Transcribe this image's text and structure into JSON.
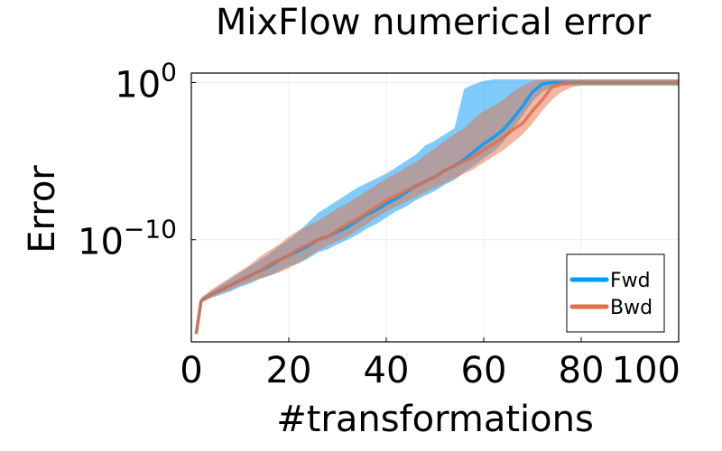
{
  "chart_data": {
    "type": "line",
    "title": "MixFlow numerical error",
    "xlabel": "#transformations",
    "ylabel": "Error",
    "xlim": [
      0,
      100
    ],
    "ylim_log10": [
      -16.5,
      0.6
    ],
    "y_scale": "log",
    "x_ticks": [
      "0",
      "20",
      "40",
      "60",
      "80",
      "100"
    ],
    "y_ticks": [
      {
        "log10": 0,
        "base": "10",
        "exp": "0"
      },
      {
        "log10": -10,
        "base": "10",
        "exp": "−10"
      }
    ],
    "grid": true,
    "legend_position": "bottom-right",
    "x": [
      1,
      2,
      4,
      6,
      8,
      10,
      12,
      14,
      16,
      18,
      20,
      22,
      24,
      26,
      28,
      30,
      32,
      34,
      36,
      38,
      40,
      42,
      44,
      46,
      48,
      50,
      52,
      54,
      56,
      58,
      60,
      62,
      64,
      66,
      68,
      70,
      72,
      74,
      76,
      78,
      80,
      82,
      84,
      86,
      88,
      90,
      92,
      94,
      96,
      98,
      100
    ],
    "series": [
      {
        "name": "Fwd",
        "color": "#009af9",
        "values_log10": [
          -16.0,
          -13.9,
          -13.5,
          -13.2,
          -12.9,
          -12.6,
          -12.3,
          -12.0,
          -11.7,
          -11.3,
          -11.0,
          -10.7,
          -10.4,
          -10.0,
          -9.8,
          -9.5,
          -9.2,
          -8.8,
          -8.4,
          -8.1,
          -7.7,
          -7.4,
          -7.0,
          -6.6,
          -6.3,
          -6.0,
          -5.6,
          -5.3,
          -4.9,
          -4.4,
          -3.9,
          -3.5,
          -3.0,
          -2.3,
          -1.5,
          -0.6,
          -0.1,
          0.0,
          0.0,
          0.0,
          0.0,
          0.0,
          0.0,
          0.0,
          0.0,
          0.0,
          0.0,
          0.0,
          0.0,
          0.0,
          0.0
        ],
        "band_lower_log10": [
          -16.0,
          -14.0,
          -13.7,
          -13.5,
          -13.3,
          -13.0,
          -12.8,
          -12.5,
          -12.3,
          -12.0,
          -11.7,
          -11.5,
          -11.2,
          -10.8,
          -10.6,
          -10.3,
          -10.0,
          -9.7,
          -9.3,
          -9.0,
          -8.6,
          -8.2,
          -7.9,
          -7.5,
          -7.2,
          -6.9,
          -6.5,
          -6.2,
          -5.7,
          -5.3,
          -4.8,
          -4.4,
          -3.8,
          -2.9,
          -2.1,
          -1.2,
          -0.6,
          -0.3,
          -0.2,
          -0.2,
          -0.2,
          -0.2,
          -0.2,
          -0.2,
          -0.2,
          -0.2,
          -0.2,
          -0.2,
          -0.2,
          -0.2,
          -0.2
        ],
        "band_upper_log10": [
          -16.0,
          -13.7,
          -13.3,
          -12.9,
          -12.5,
          -12.1,
          -11.7,
          -11.3,
          -10.9,
          -10.4,
          -10.0,
          -9.5,
          -8.9,
          -8.3,
          -7.9,
          -7.5,
          -7.1,
          -6.7,
          -6.4,
          -6.1,
          -5.8,
          -5.4,
          -5.0,
          -4.6,
          -4.0,
          -3.7,
          -3.3,
          -2.9,
          -0.4,
          -0.1,
          0.1,
          0.2,
          0.2,
          0.2,
          0.2,
          0.2,
          0.2,
          0.2,
          0.2,
          0.2,
          0.2,
          0.2,
          0.2,
          0.2,
          0.2,
          0.2,
          0.2,
          0.2,
          0.2,
          0.2,
          0.2
        ]
      },
      {
        "name": "Bwd",
        "color": "#e26f46",
        "values_log10": [
          -16.0,
          -13.9,
          -13.5,
          -13.2,
          -12.9,
          -12.6,
          -12.3,
          -12.0,
          -11.6,
          -11.3,
          -11.0,
          -10.6,
          -10.3,
          -10.0,
          -9.8,
          -9.4,
          -9.0,
          -8.7,
          -8.3,
          -7.9,
          -7.5,
          -7.2,
          -6.9,
          -6.6,
          -6.3,
          -6.0,
          -5.6,
          -5.3,
          -5.0,
          -4.7,
          -4.3,
          -3.9,
          -3.5,
          -3.0,
          -2.6,
          -1.8,
          -1.1,
          -0.3,
          -0.1,
          0.0,
          0.0,
          0.0,
          0.0,
          0.0,
          0.0,
          0.0,
          0.0,
          0.0,
          0.0,
          0.0,
          0.0
        ],
        "band_lower_log10": [
          -16.0,
          -14.0,
          -13.7,
          -13.4,
          -13.2,
          -12.9,
          -12.7,
          -12.5,
          -12.3,
          -12.1,
          -11.8,
          -11.5,
          -11.1,
          -10.7,
          -10.4,
          -10.1,
          -9.8,
          -9.4,
          -9.0,
          -8.6,
          -8.2,
          -7.9,
          -7.6,
          -7.3,
          -7.0,
          -6.7,
          -6.4,
          -6.1,
          -5.8,
          -5.5,
          -5.1,
          -4.7,
          -4.3,
          -3.8,
          -3.3,
          -2.6,
          -1.8,
          -1.1,
          -0.6,
          -0.3,
          -0.2,
          -0.2,
          -0.2,
          -0.2,
          -0.2,
          -0.2,
          -0.2,
          -0.2,
          -0.2,
          -0.2,
          -0.2
        ],
        "band_upper_log10": [
          -16.0,
          -13.7,
          -13.2,
          -12.8,
          -12.4,
          -12.0,
          -11.6,
          -11.1,
          -10.7,
          -10.3,
          -9.8,
          -9.4,
          -9.1,
          -8.8,
          -8.4,
          -8.0,
          -7.7,
          -7.3,
          -6.9,
          -6.5,
          -6.1,
          -5.8,
          -5.4,
          -5.1,
          -4.6,
          -4.2,
          -3.7,
          -3.3,
          -2.9,
          -2.3,
          -1.8,
          -1.5,
          -1.1,
          -0.6,
          -0.2,
          0.1,
          0.2,
          0.2,
          0.2,
          0.2,
          0.2,
          0.2,
          0.2,
          0.2,
          0.2,
          0.2,
          0.2,
          0.2,
          0.2,
          0.2,
          0.2
        ]
      }
    ]
  }
}
